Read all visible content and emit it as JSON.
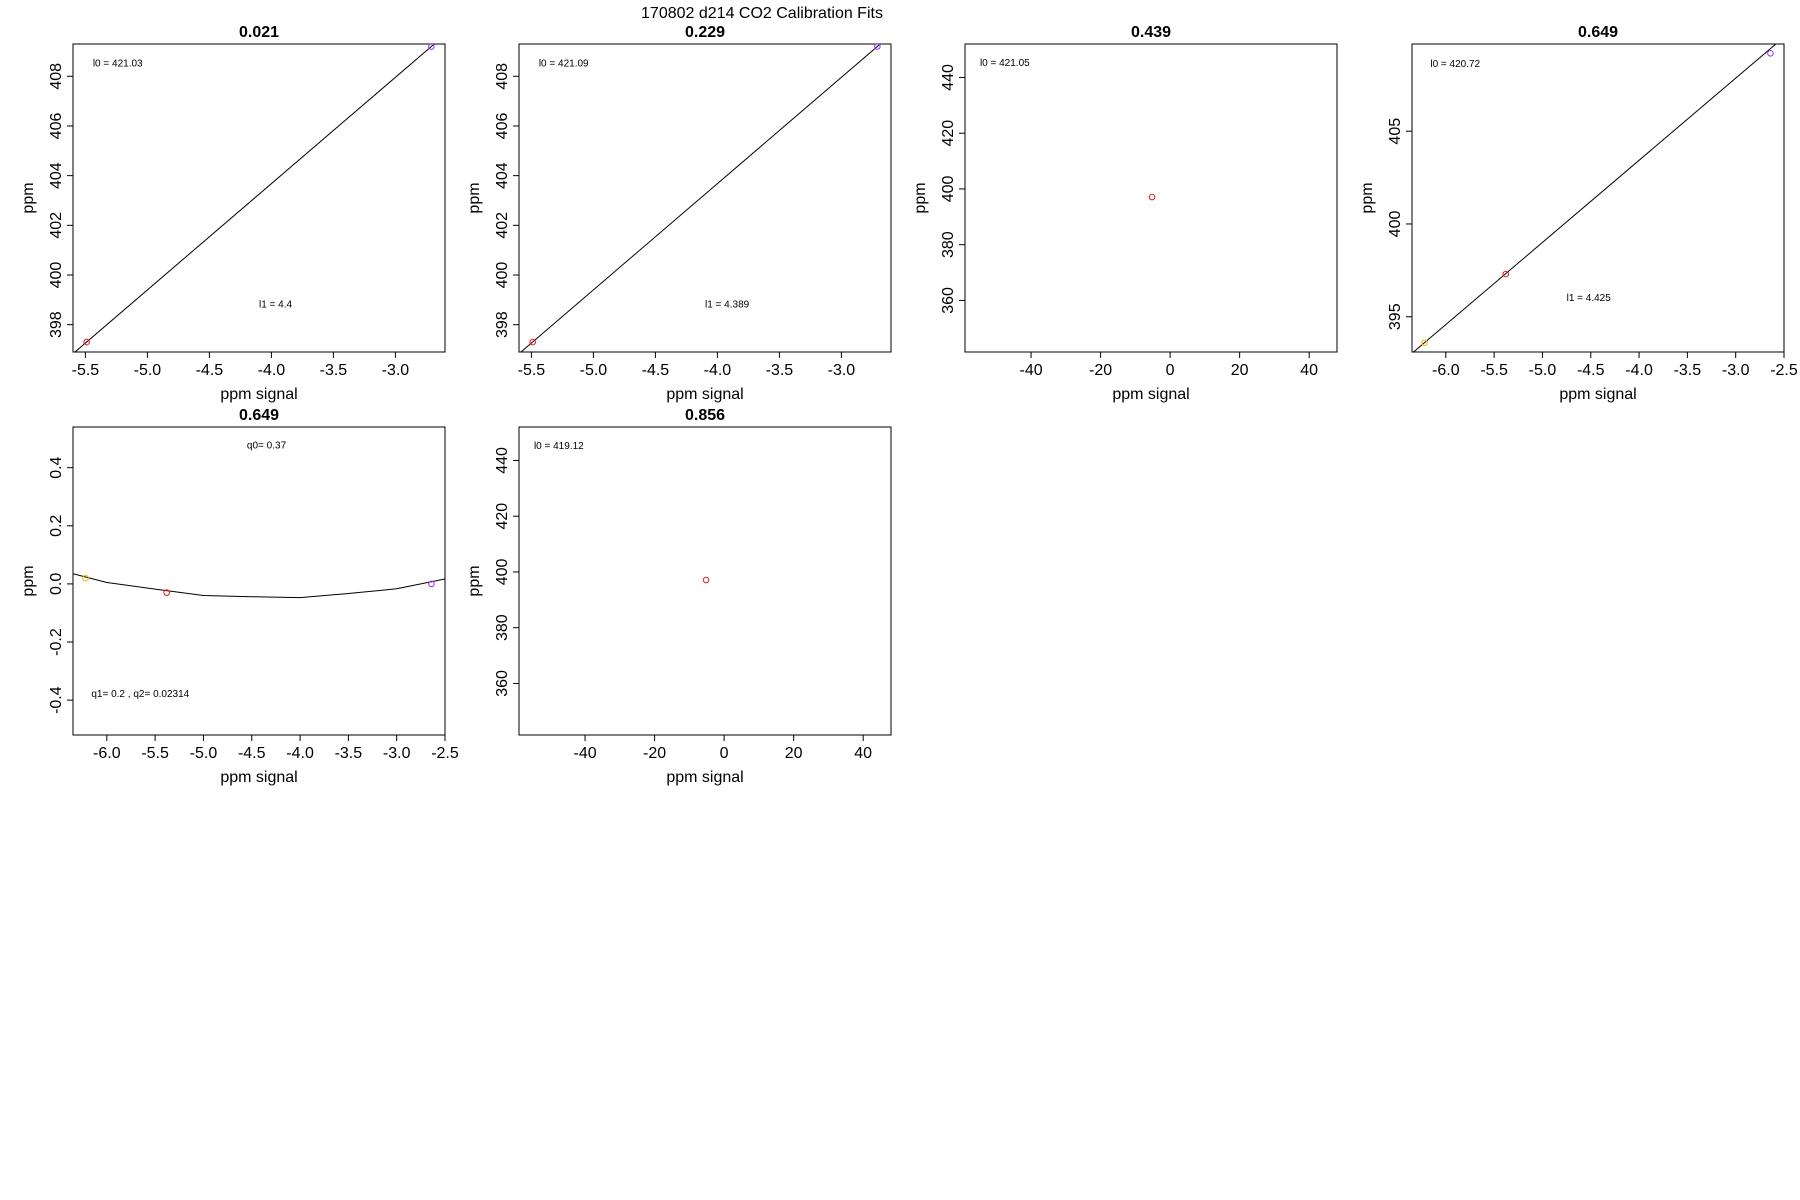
{
  "suptitle": "170802   d214   CO2 Calibration Fits",
  "chart_data": [
    {
      "type": "scatter",
      "title": "0.021",
      "xlabel": "ppm signal",
      "ylabel": "ppm",
      "xlim": [
        -5.6,
        -2.6
      ],
      "ylim": [
        396.9,
        409.3
      ],
      "xticks": [
        "-5.5",
        "-5.0",
        "-4.5",
        "-4.0",
        "-3.5",
        "-3.0"
      ],
      "xtick_values": [
        -5.5,
        -5.0,
        -4.5,
        -4.0,
        -3.5,
        -3.0
      ],
      "yticks": [
        "398",
        "400",
        "402",
        "404",
        "406",
        "408"
      ],
      "ytick_values": [
        398,
        400,
        402,
        404,
        406,
        408
      ],
      "points": [
        {
          "x": -5.49,
          "y": 397.3,
          "color": "#e41a1c"
        },
        {
          "x": -2.71,
          "y": 409.2,
          "color": "#9b30ff"
        }
      ],
      "fit": {
        "kind": "line",
        "x": [
          -5.6,
          -2.6
        ],
        "y": [
          396.83,
          409.67
        ]
      },
      "annotations": [
        {
          "text": "l0 =  421.03",
          "x": -5.44,
          "y": 408.5
        },
        {
          "text": "l1 =  4.4",
          "x": -4.1,
          "y": 398.8
        }
      ]
    },
    {
      "type": "scatter",
      "title": "0.229",
      "xlabel": "ppm signal",
      "ylabel": "ppm",
      "xlim": [
        -5.6,
        -2.6
      ],
      "ylim": [
        396.9,
        409.3
      ],
      "xticks": [
        "-5.5",
        "-5.0",
        "-4.5",
        "-4.0",
        "-3.5",
        "-3.0"
      ],
      "xtick_values": [
        -5.5,
        -5.0,
        -4.5,
        -4.0,
        -3.5,
        -3.0
      ],
      "yticks": [
        "398",
        "400",
        "402",
        "404",
        "406",
        "408"
      ],
      "ytick_values": [
        398,
        400,
        402,
        404,
        406,
        408
      ],
      "points": [
        {
          "x": -5.49,
          "y": 397.3,
          "color": "#e41a1c"
        },
        {
          "x": -2.71,
          "y": 409.2,
          "color": "#9b30ff"
        }
      ],
      "fit": {
        "kind": "line",
        "x": [
          -5.6,
          -2.6
        ],
        "y": [
          396.83,
          409.67
        ]
      },
      "annotations": [
        {
          "text": "l0 =  421.09",
          "x": -5.44,
          "y": 408.5
        },
        {
          "text": "l1 =  4.389",
          "x": -4.1,
          "y": 398.8
        }
      ]
    },
    {
      "type": "scatter",
      "title": "0.439",
      "xlabel": "ppm signal",
      "ylabel": "ppm",
      "xlim": [
        -59,
        48
      ],
      "ylim": [
        341.5,
        452
      ],
      "xticks": [
        "-40",
        "-20",
        "0",
        "20",
        "40"
      ],
      "xtick_values": [
        -40,
        -20,
        0,
        20,
        40
      ],
      "yticks": [
        "360",
        "380",
        "400",
        "420",
        "440"
      ],
      "ytick_values": [
        360,
        380,
        400,
        420,
        440
      ],
      "points": [
        {
          "x": -5.2,
          "y": 397.1,
          "color": "#e41a1c"
        }
      ],
      "annotations": [
        {
          "text": "l0 =  421.05",
          "x": -54.7,
          "y": 445
        }
      ]
    },
    {
      "type": "scatter",
      "title": "0.649",
      "xlabel": "ppm signal",
      "ylabel": "ppm",
      "xlim": [
        -6.35,
        -2.5
      ],
      "ylim": [
        393.1,
        409.7
      ],
      "xticks": [
        "-6.0",
        "-5.5",
        "-5.0",
        "-4.5",
        "-4.0",
        "-3.5",
        "-3.0",
        "-2.5"
      ],
      "xtick_values": [
        -6.0,
        -5.5,
        -5.0,
        -4.5,
        -4.0,
        -3.5,
        -3.0,
        -2.5
      ],
      "yticks": [
        "395",
        "400",
        "405"
      ],
      "ytick_values": [
        395,
        400,
        405
      ],
      "points": [
        {
          "x": -6.22,
          "y": 393.6,
          "color": "#e6c200"
        },
        {
          "x": -5.38,
          "y": 397.3,
          "color": "#e41a1c"
        },
        {
          "x": -2.64,
          "y": 409.2,
          "color": "#9b30ff"
        }
      ],
      "fit": {
        "kind": "line",
        "x": [
          -6.35,
          -2.5
        ],
        "y": [
          393.03,
          410.07
        ]
      },
      "annotations": [
        {
          "text": "l0 =  420.72",
          "x": -6.16,
          "y": 408.6
        },
        {
          "text": "l1 =  4.425",
          "x": -4.75,
          "y": 396.0
        }
      ]
    },
    {
      "type": "line",
      "title": "0.649",
      "xlabel": "ppm signal",
      "ylabel": "ppm",
      "xlim": [
        -6.35,
        -2.5
      ],
      "ylim": [
        -0.52,
        0.54
      ],
      "xticks": [
        "-6.0",
        "-5.5",
        "-5.0",
        "-4.5",
        "-4.0",
        "-3.5",
        "-3.0",
        "-2.5"
      ],
      "xtick_values": [
        -6.0,
        -5.5,
        -5.0,
        -4.5,
        -4.0,
        -3.5,
        -3.0,
        -2.5
      ],
      "yticks": [
        "-0.4",
        "-0.2",
        "0.0",
        "0.2",
        "0.4"
      ],
      "ytick_values": [
        -0.4,
        -0.2,
        0.0,
        0.2,
        0.4
      ],
      "points": [
        {
          "x": -6.22,
          "y": 0.02,
          "color": "#e6c200"
        },
        {
          "x": -5.38,
          "y": -0.03,
          "color": "#e41a1c"
        },
        {
          "x": -2.64,
          "y": 0.0,
          "color": "#9b30ff"
        }
      ],
      "fit": {
        "kind": "polyline",
        "x": [
          -6.35,
          -6.0,
          -5.5,
          -5.0,
          -4.5,
          -4.0,
          -3.5,
          -3.0,
          -2.5
        ],
        "y": [
          0.035,
          0.005,
          -0.018,
          -0.04,
          -0.044,
          -0.047,
          -0.033,
          -0.017,
          0.017
        ]
      },
      "annotations": [
        {
          "text": "q0= 0.37",
          "x": -4.55,
          "y": 0.475
        },
        {
          "text": "q1= 0.2 , q2= 0.02314",
          "x": -6.16,
          "y": -0.38
        }
      ]
    },
    {
      "type": "scatter",
      "title": "0.856",
      "xlabel": "ppm signal",
      "ylabel": "ppm",
      "xlim": [
        -59,
        48
      ],
      "ylim": [
        341.5,
        452
      ],
      "xticks": [
        "-40",
        "-20",
        "0",
        "20",
        "40"
      ],
      "xtick_values": [
        -40,
        -20,
        0,
        20,
        40
      ],
      "yticks": [
        "360",
        "380",
        "400",
        "420",
        "440"
      ],
      "ytick_values": [
        360,
        380,
        400,
        420,
        440
      ],
      "points": [
        {
          "x": -5.2,
          "y": 397.1,
          "color": "#e41a1c"
        }
      ],
      "annotations": [
        {
          "text": "l0 =  419.12",
          "x": -54.7,
          "y": 445
        }
      ]
    }
  ]
}
